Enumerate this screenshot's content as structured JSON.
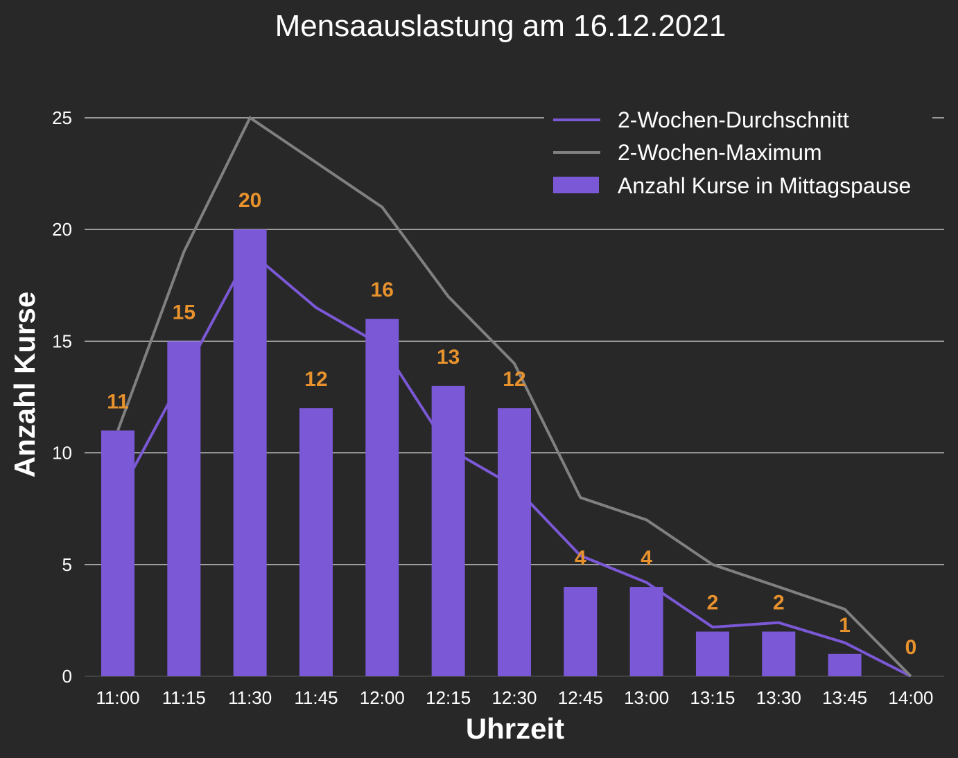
{
  "chart_data": {
    "type": "bar",
    "title": "Mensaauslastung am 16.12.2021",
    "xlabel": "Uhrzeit",
    "ylabel": "Anzahl Kurse",
    "categories": [
      "11:00",
      "11:15",
      "11:30",
      "11:45",
      "12:00",
      "12:15",
      "12:30",
      "12:45",
      "13:00",
      "13:15",
      "13:30",
      "13:45",
      "14:00"
    ],
    "ylim": [
      0,
      25
    ],
    "yticks": [
      0,
      5,
      10,
      15,
      20,
      25
    ],
    "grid": true,
    "legend_position": "top-right",
    "series": [
      {
        "name": "Anzahl Kurse in Mittagspause",
        "kind": "bar",
        "color": "#7b58d6",
        "values": [
          11,
          15,
          20,
          12,
          16,
          13,
          12,
          4,
          4,
          2,
          2,
          1,
          0
        ],
        "labels": [
          "11",
          "15",
          "20",
          "12",
          "16",
          "13",
          "12",
          "4",
          "4",
          "2",
          "2",
          "1",
          "0"
        ],
        "label_color": "#e8922e"
      },
      {
        "name": "2-Wochen-Durchschnitt",
        "kind": "line",
        "color": "#7b58d6",
        "values": [
          8,
          13.5,
          19,
          16.5,
          14.8,
          10.2,
          8.5,
          5.4,
          4.2,
          2.2,
          2.4,
          1.5,
          0
        ]
      },
      {
        "name": "2-Wochen-Maximum",
        "kind": "line",
        "color": "#808080",
        "values": [
          11,
          19,
          25,
          23,
          21,
          17,
          14,
          8,
          7,
          5,
          4,
          3,
          0
        ]
      }
    ]
  }
}
